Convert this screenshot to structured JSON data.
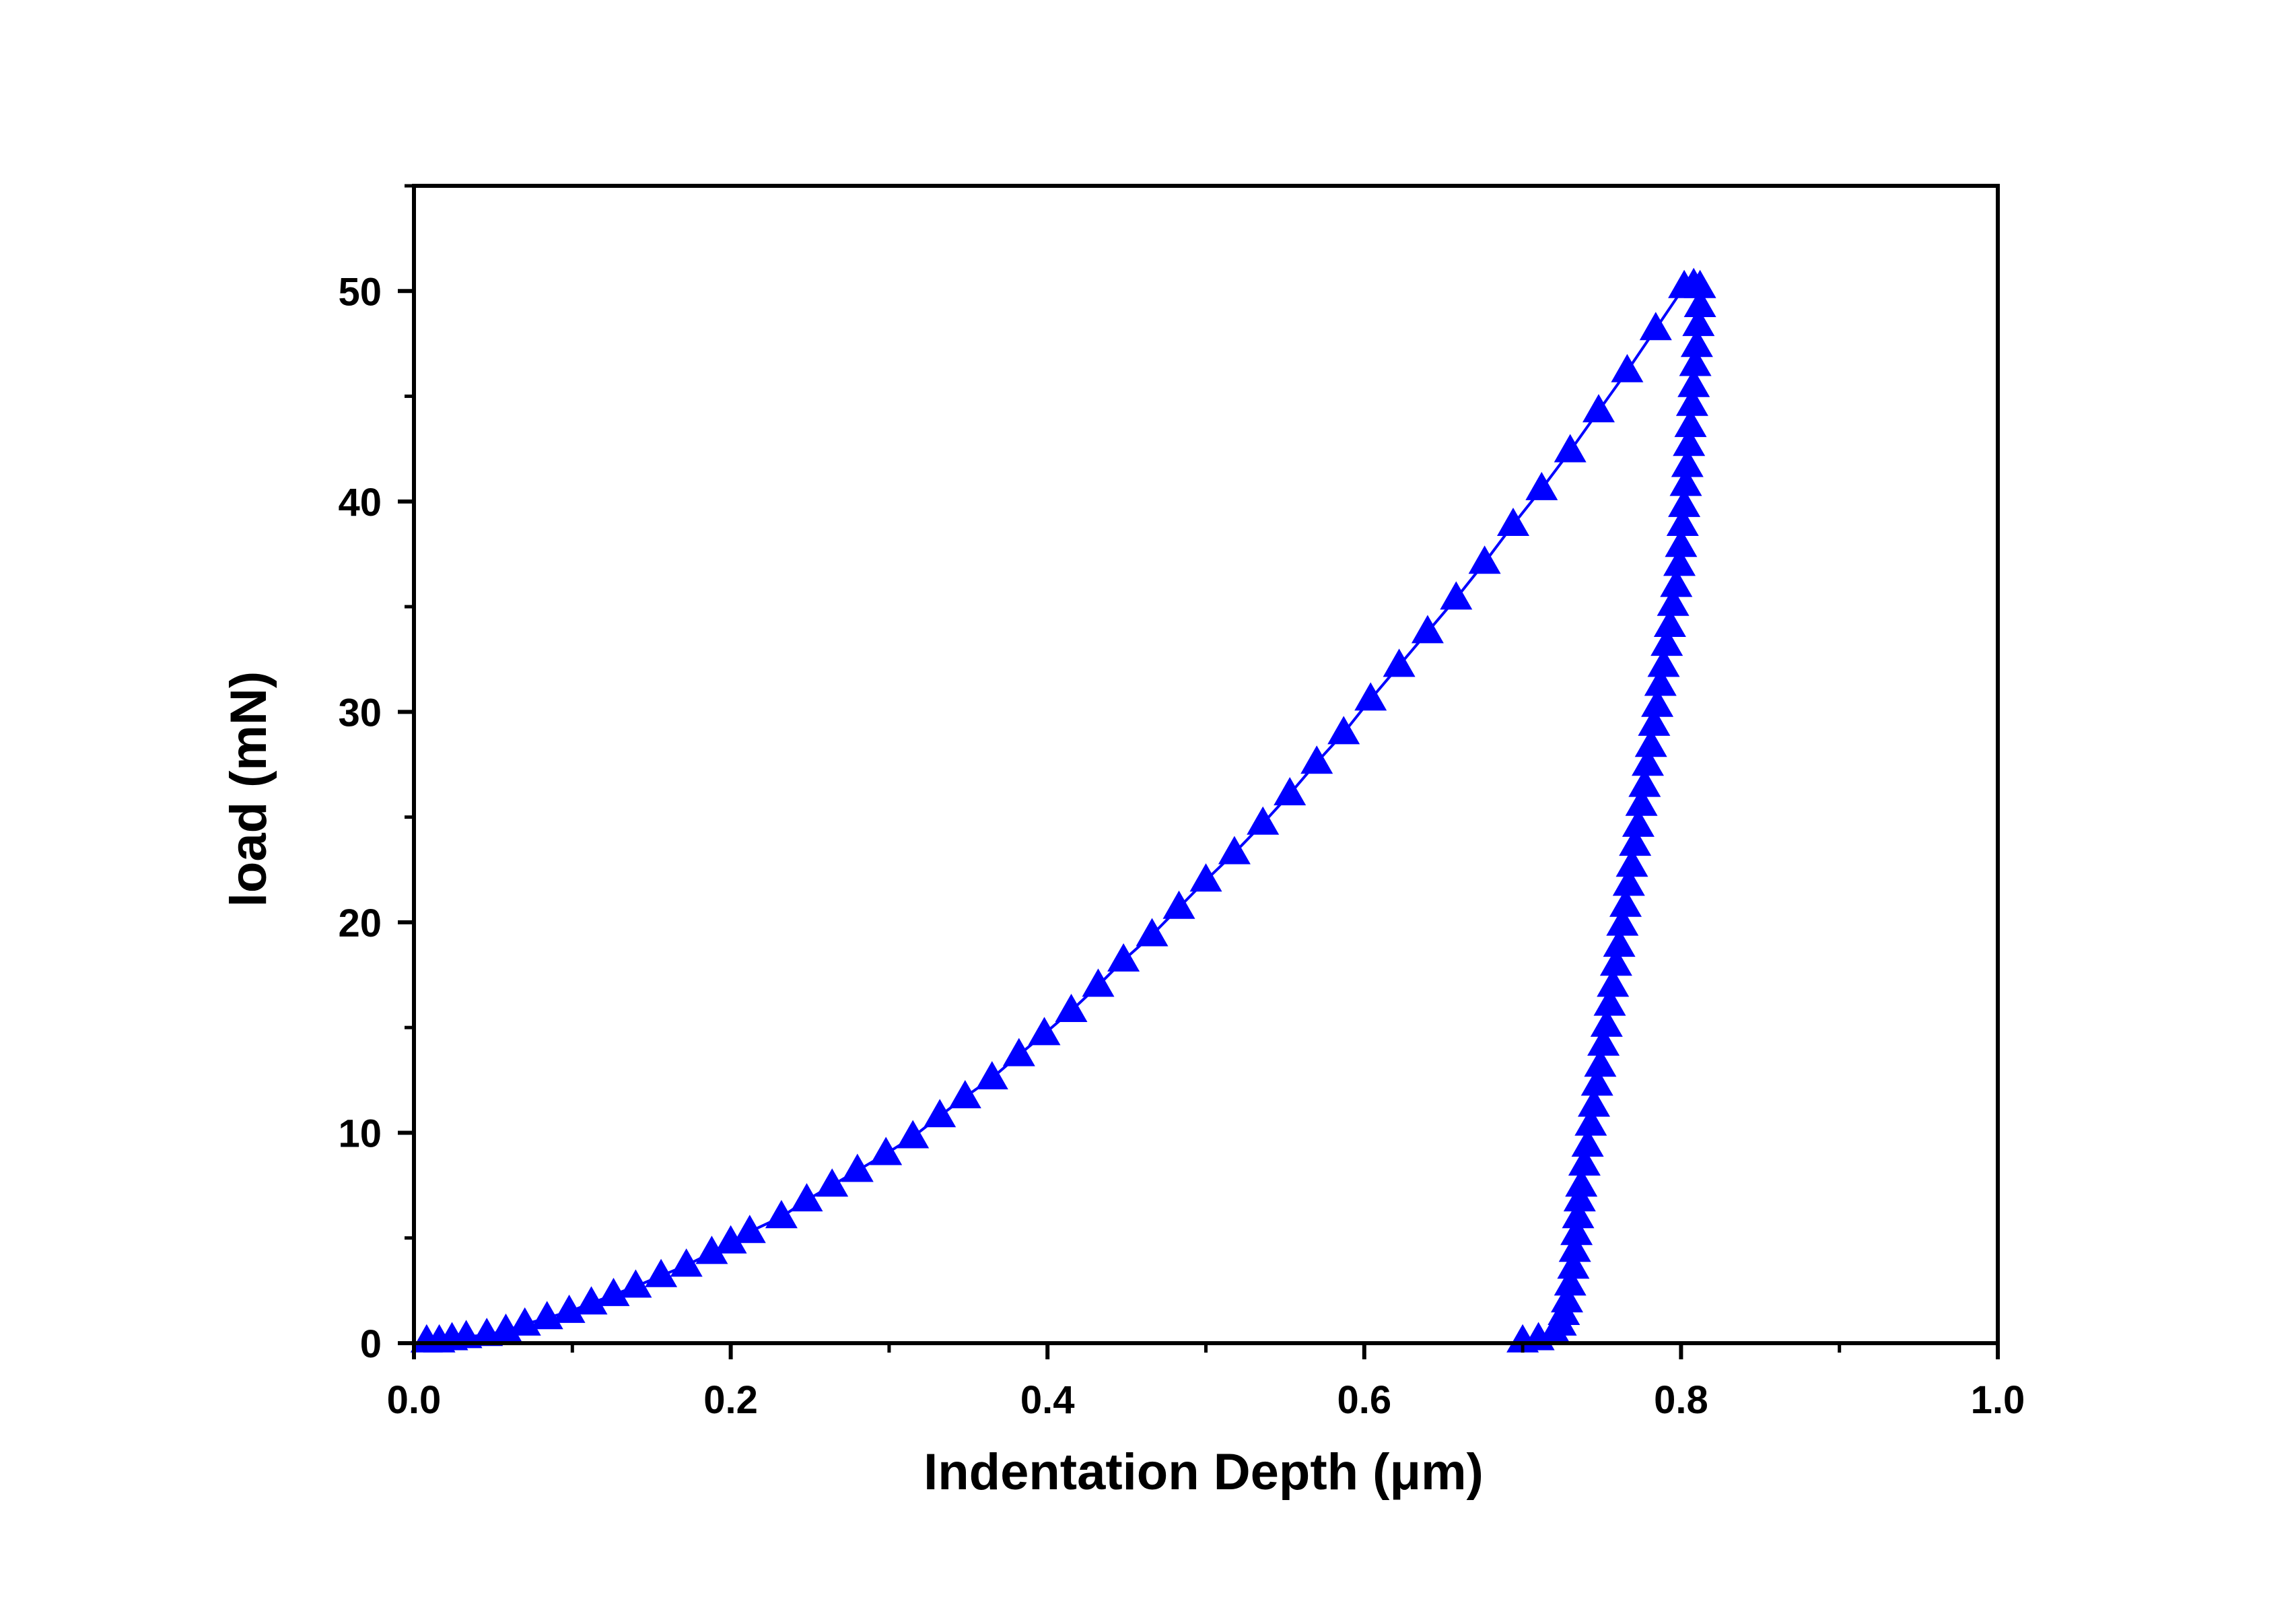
{
  "chart_data": {
    "type": "scatter",
    "title": "",
    "xlabel": "Indentation Depth (μm)",
    "ylabel": "load (mN)",
    "xlim": [
      0.0,
      1.0
    ],
    "ylim": [
      0,
      55
    ],
    "x_ticks": [
      "0.0",
      "0.2",
      "0.4",
      "0.6",
      "0.8",
      "1.0"
    ],
    "y_ticks": [
      "0",
      "10",
      "20",
      "30",
      "40",
      "50"
    ],
    "x_tick_values": [
      0.0,
      0.2,
      0.4,
      0.6,
      0.8,
      1.0
    ],
    "y_tick_values": [
      0,
      10,
      20,
      30,
      40,
      50
    ],
    "grid": false,
    "legend": "none",
    "marker": "triangle-up",
    "color": "#0000ff",
    "series": [
      {
        "name": "",
        "x": [
          0.008,
          0.016,
          0.024,
          0.033,
          0.046,
          0.058,
          0.07,
          0.084,
          0.098,
          0.112,
          0.126,
          0.14,
          0.156,
          0.172,
          0.188,
          0.2,
          0.212,
          0.232,
          0.248,
          0.264,
          0.28,
          0.298,
          0.315,
          0.332,
          0.348,
          0.365,
          0.382,
          0.398,
          0.415,
          0.432,
          0.448,
          0.466,
          0.483,
          0.5,
          0.518,
          0.536,
          0.553,
          0.57,
          0.587,
          0.604,
          0.622,
          0.64,
          0.658,
          0.676,
          0.694,
          0.712,
          0.73,
          0.748,
          0.766,
          0.784,
          0.802,
          0.808,
          0.812,
          0.812,
          0.811,
          0.81,
          0.809,
          0.808,
          0.807,
          0.806,
          0.805,
          0.804,
          0.803,
          0.802,
          0.801,
          0.8,
          0.799,
          0.797,
          0.795,
          0.793,
          0.791,
          0.789,
          0.787,
          0.785,
          0.783,
          0.781,
          0.779,
          0.777,
          0.775,
          0.773,
          0.771,
          0.769,
          0.767,
          0.765,
          0.763,
          0.761,
          0.759,
          0.757,
          0.755,
          0.753,
          0.751,
          0.749,
          0.747,
          0.745,
          0.743,
          0.741,
          0.739,
          0.737,
          0.736,
          0.735,
          0.734,
          0.733,
          0.732,
          0.73,
          0.728,
          0.726,
          0.724,
          0.72,
          0.71,
          0.7
        ],
        "y": [
          0.1,
          0.1,
          0.2,
          0.3,
          0.4,
          0.6,
          0.9,
          1.2,
          1.5,
          1.9,
          2.3,
          2.7,
          3.2,
          3.7,
          4.3,
          4.8,
          5.3,
          6.0,
          6.8,
          7.5,
          8.2,
          9.0,
          9.8,
          10.8,
          11.7,
          12.6,
          13.7,
          14.7,
          15.8,
          17.0,
          18.2,
          19.4,
          20.7,
          22.0,
          23.3,
          24.7,
          26.1,
          27.6,
          29.0,
          30.6,
          32.2,
          33.8,
          35.4,
          37.1,
          38.9,
          40.6,
          42.4,
          44.3,
          46.2,
          48.2,
          50.2,
          50.3,
          50.2,
          49.3,
          48.4,
          47.4,
          46.5,
          45.5,
          44.6,
          43.6,
          42.7,
          41.7,
          40.8,
          39.8,
          38.9,
          37.9,
          37.0,
          36.0,
          35.1,
          34.1,
          33.2,
          32.2,
          31.3,
          30.3,
          29.4,
          28.4,
          27.5,
          26.5,
          25.6,
          24.6,
          23.7,
          22.7,
          21.8,
          20.8,
          19.9,
          18.9,
          18.0,
          17.0,
          16.1,
          15.1,
          14.2,
          13.2,
          12.3,
          11.3,
          10.4,
          9.4,
          8.5,
          7.5,
          6.8,
          6.0,
          5.2,
          4.4,
          3.6,
          2.8,
          2.0,
          1.4,
          0.9,
          0.5,
          0.2,
          0.1
        ]
      }
    ]
  }
}
